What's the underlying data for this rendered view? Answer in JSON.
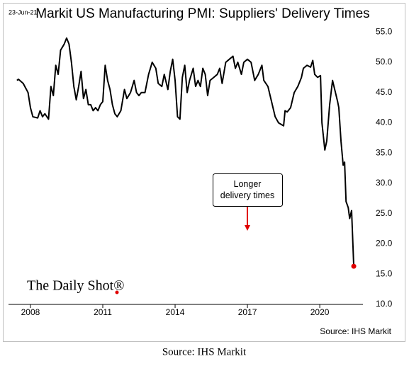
{
  "chart_data": {
    "type": "line",
    "date_stamp": "23-Jun-21",
    "title": "Markit US Manufacturing PMI: Suppliers' Delivery Times",
    "annotation": "Longer delivery times",
    "annotation_arrow_color": "#e00000",
    "brand": "The Daily Shot®",
    "source": "Source: IHS Markit",
    "caption": "Source: IHS Markit",
    "color": "#000000",
    "end_marker_color": "#e00000",
    "xlim": [
      2007.09,
      2021.79
    ],
    "xticks": [
      2008,
      2011,
      2014,
      2017,
      2020
    ],
    "ylim": [
      10,
      59
    ],
    "yticks": [
      {
        "value": 10,
        "label": "10.0"
      },
      {
        "value": 15,
        "label": "15.0"
      },
      {
        "value": 20,
        "label": "20.0"
      },
      {
        "value": 25,
        "label": "25.0"
      },
      {
        "value": 30,
        "label": "30.0"
      },
      {
        "value": 35,
        "label": "35.0"
      },
      {
        "value": 40,
        "label": "40.0"
      },
      {
        "value": 45,
        "label": "45.0"
      },
      {
        "value": 50,
        "label": "50.0"
      },
      {
        "value": 55,
        "label": "55.0"
      }
    ],
    "x": [
      2007.44,
      2007.5,
      2007.7,
      2007.9,
      2008.0,
      2008.1,
      2008.3,
      2008.4,
      2008.5,
      2008.6,
      2008.75,
      2008.85,
      2008.95,
      2009.05,
      2009.15,
      2009.25,
      2009.4,
      2009.5,
      2009.6,
      2009.7,
      2009.8,
      2009.9,
      2010.0,
      2010.1,
      2010.2,
      2010.3,
      2010.4,
      2010.5,
      2010.6,
      2010.7,
      2010.8,
      2010.9,
      2011.0,
      2011.1,
      2011.2,
      2011.3,
      2011.4,
      2011.5,
      2011.6,
      2011.75,
      2011.9,
      2012.0,
      2012.15,
      2012.3,
      2012.4,
      2012.5,
      2012.6,
      2012.75,
      2012.9,
      2013.05,
      2013.2,
      2013.3,
      2013.45,
      2013.55,
      2013.7,
      2013.8,
      2013.9,
      2014.0,
      2014.1,
      2014.2,
      2014.3,
      2014.4,
      2014.5,
      2014.6,
      2014.75,
      2014.85,
      2014.95,
      2015.05,
      2015.15,
      2015.25,
      2015.35,
      2015.45,
      2015.6,
      2015.75,
      2015.85,
      2015.95,
      2016.1,
      2016.25,
      2016.4,
      2016.5,
      2016.6,
      2016.75,
      2016.85,
      2017.0,
      2017.15,
      2017.3,
      2017.45,
      2017.6,
      2017.68,
      2017.85,
      2018.0,
      2018.15,
      2018.29,
      2018.5,
      2018.56,
      2018.65,
      2018.79,
      2018.94,
      2019.09,
      2019.24,
      2019.32,
      2019.47,
      2019.62,
      2019.71,
      2019.79,
      2019.91,
      2020.03,
      2020.09,
      2020.21,
      2020.29,
      2020.41,
      2020.53,
      2020.62,
      2020.74,
      2020.79,
      2020.88,
      2020.97,
      2021.03,
      2021.09,
      2021.18,
      2021.24,
      2021.32,
      2021.41
    ],
    "values": [
      47,
      47.2,
      46.5,
      45,
      42.5,
      41,
      40.8,
      42,
      41,
      41.5,
      40.6,
      46,
      44.5,
      49.5,
      48,
      52,
      53,
      54,
      53,
      50,
      46,
      43.8,
      46,
      48.5,
      44,
      45.5,
      43,
      43,
      42,
      42.5,
      42,
      43,
      43.5,
      49.5,
      47,
      45.5,
      43,
      41.5,
      41,
      42,
      45.5,
      44,
      45,
      47,
      45,
      44.5,
      45,
      45,
      48,
      50,
      49,
      46.5,
      46,
      48,
      45.5,
      48.5,
      50.5,
      47,
      41,
      40.6,
      47.5,
      49.5,
      45,
      47,
      49,
      46,
      47,
      46,
      49,
      48,
      44.5,
      47,
      47.5,
      48,
      49,
      46.5,
      50,
      50.5,
      51,
      49,
      50,
      48,
      50,
      50.5,
      50,
      47,
      48,
      49.5,
      47,
      46,
      43.5,
      41,
      40,
      39.5,
      42,
      41.8,
      42.5,
      45,
      46,
      47.5,
      49,
      49.5,
      49.2,
      50.3,
      48,
      47.5,
      47.8,
      40,
      35.5,
      37,
      43,
      47,
      45.5,
      43.5,
      42.5,
      37,
      33,
      33.5,
      27,
      26,
      24.2,
      25.5,
      16.3
    ]
  }
}
